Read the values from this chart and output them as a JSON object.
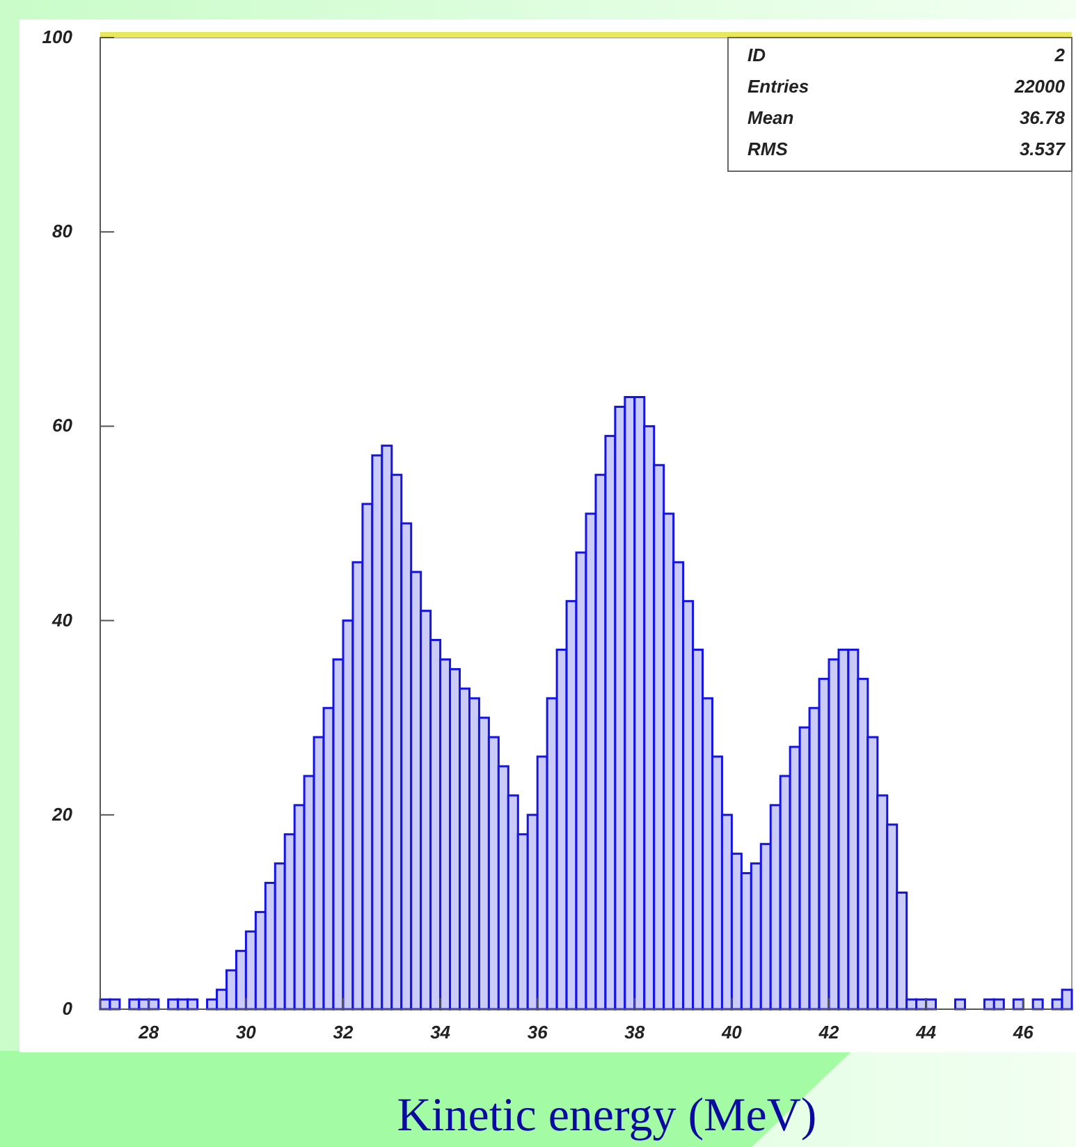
{
  "chart_data": {
    "type": "histogram",
    "xlabel": "Kinetic energy (MeV)",
    "bins": [
      27,
      27.2,
      27.4,
      27.6,
      27.8,
      28,
      28.2,
      28.4,
      28.6,
      28.8,
      29,
      29.2,
      29.4,
      29.6,
      29.8,
      30,
      30.2,
      30.4,
      30.6,
      30.8,
      31,
      31.2,
      31.4,
      31.6,
      31.8,
      32,
      32.2,
      32.4,
      32.6,
      32.8,
      33,
      33.2,
      33.4,
      33.6,
      33.8,
      34,
      34.2,
      34.4,
      34.6,
      34.8,
      35,
      35.2,
      35.4,
      35.6,
      35.8,
      36,
      36.2,
      36.4,
      36.6,
      36.8,
      37,
      37.2,
      37.4,
      37.6,
      37.8,
      38,
      38.2,
      38.4,
      38.6,
      38.8,
      39,
      39.2,
      39.4,
      39.6,
      39.8,
      40,
      40.2,
      40.4,
      40.6,
      40.8,
      41,
      41.2,
      41.4,
      41.6,
      41.8,
      42,
      42.2,
      42.4,
      42.6,
      42.8,
      43,
      43.2,
      43.4,
      43.6,
      43.8,
      44,
      44.2,
      44.4,
      44.6,
      44.8,
      45,
      45.2,
      45.4,
      45.6,
      45.8,
      46,
      46.2,
      46.4,
      46.6,
      46.8,
      47
    ],
    "values": [
      1,
      1,
      0,
      1,
      1,
      1,
      0,
      1,
      1,
      1,
      0,
      1,
      2,
      4,
      6,
      8,
      10,
      13,
      15,
      18,
      21,
      24,
      28,
      31,
      36,
      40,
      46,
      52,
      57,
      58,
      55,
      50,
      45,
      41,
      38,
      36,
      35,
      33,
      32,
      30,
      28,
      25,
      22,
      18,
      20,
      26,
      32,
      37,
      42,
      47,
      51,
      55,
      59,
      62,
      63,
      63,
      60,
      56,
      51,
      46,
      42,
      37,
      32,
      26,
      20,
      16,
      14,
      15,
      17,
      21,
      24,
      27,
      29,
      31,
      34,
      36,
      37,
      37,
      34,
      28,
      22,
      19,
      12,
      1,
      1,
      1,
      0,
      0,
      1,
      0,
      0,
      1,
      1,
      0,
      1,
      0,
      1,
      0,
      1,
      2
    ],
    "color": "#1414e6",
    "xlim": [
      27,
      47
    ],
    "ylim": [
      0,
      100
    ],
    "xticks": [
      28,
      30,
      32,
      34,
      36,
      38,
      40,
      42,
      44,
      46
    ],
    "yticks": [
      0,
      20,
      40,
      60,
      80,
      100
    ],
    "annotations": [
      "ID",
      "2",
      "Entries",
      "22000",
      "Mean",
      "36.78",
      "RMS",
      "3.537"
    ]
  }
}
